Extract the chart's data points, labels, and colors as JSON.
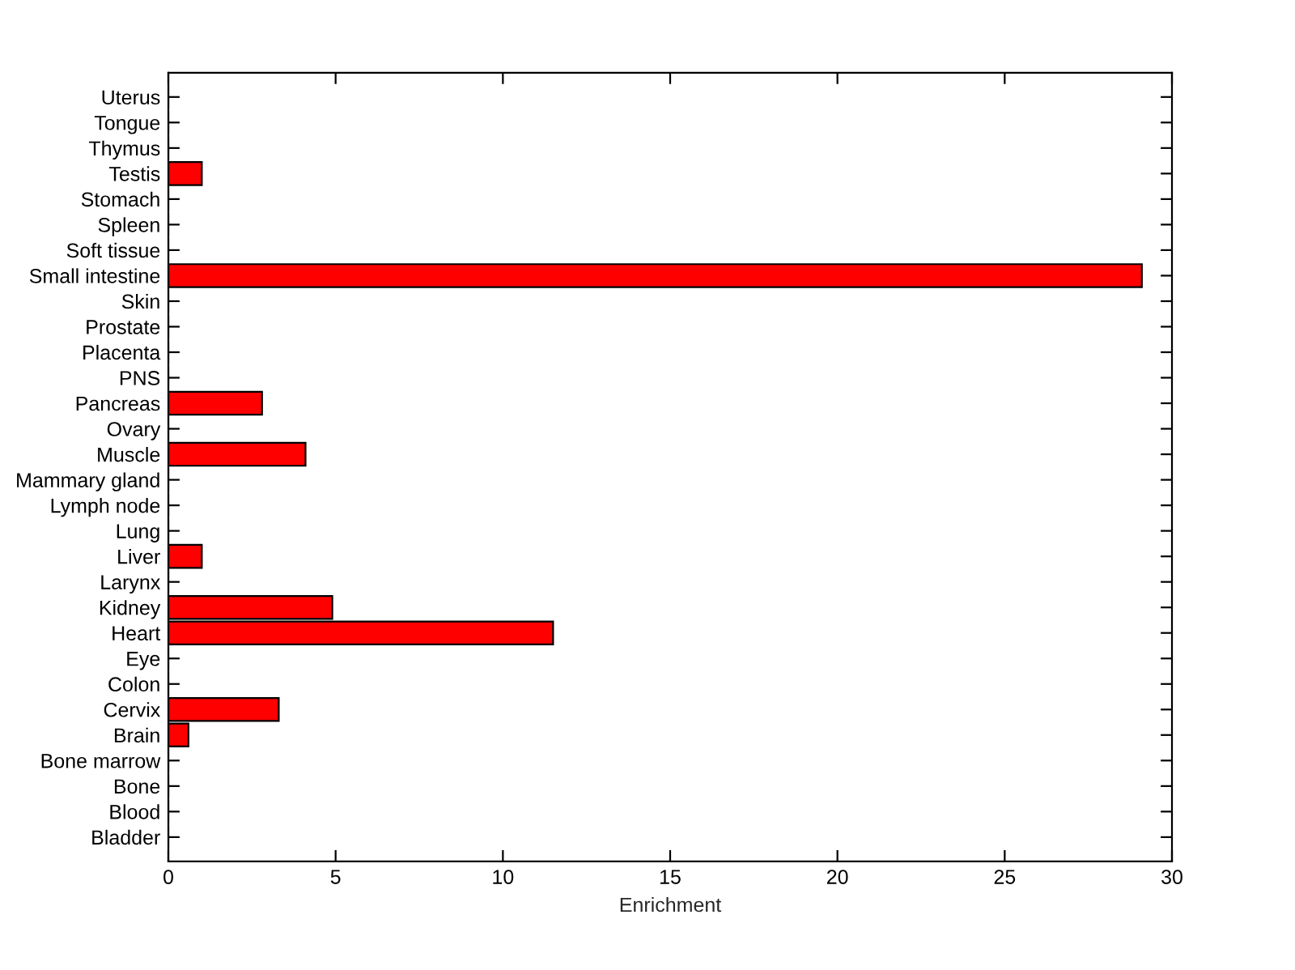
{
  "chart_data": {
    "type": "bar",
    "orientation": "horizontal",
    "xlabel": "Enrichment",
    "categories": [
      "Uterus",
      "Tongue",
      "Thymus",
      "Testis",
      "Stomach",
      "Spleen",
      "Soft tissue",
      "Small intestine",
      "Skin",
      "Prostate",
      "Placenta",
      "PNS",
      "Pancreas",
      "Ovary",
      "Muscle",
      "Mammary gland",
      "Lymph node",
      "Lung",
      "Liver",
      "Larynx",
      "Kidney",
      "Heart",
      "Eye",
      "Colon",
      "Cervix",
      "Brain",
      "Bone marrow",
      "Bone",
      "Blood",
      "Bladder"
    ],
    "values": [
      0,
      0,
      0,
      1.0,
      0,
      0,
      0,
      29.1,
      0,
      0,
      0,
      0,
      2.8,
      0,
      4.1,
      0,
      0,
      0,
      1.0,
      0,
      4.9,
      11.5,
      0,
      0,
      3.3,
      0.6,
      0,
      0,
      0,
      0
    ],
    "color": "#ff0000",
    "xlim": [
      0,
      30
    ],
    "xticks": [
      0,
      5,
      10,
      15,
      20,
      25,
      30
    ],
    "grid": false,
    "legend": false
  }
}
